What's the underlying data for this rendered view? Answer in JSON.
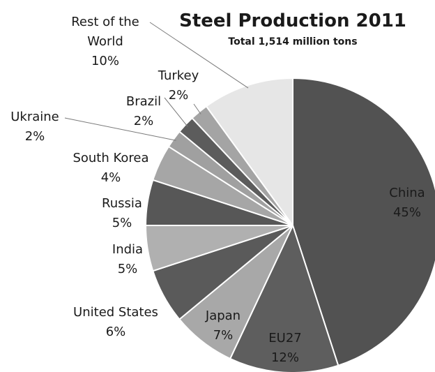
{
  "chart_data": {
    "type": "pie",
    "title": "Steel Production 2011",
    "subtitle": "Total 1,514 million tons",
    "slices": [
      {
        "name": "China",
        "value": 45,
        "label": "45%",
        "color": "#525252"
      },
      {
        "name": "EU27",
        "value": 12,
        "label": "12%",
        "color": "#5e5e5e"
      },
      {
        "name": "Japan",
        "value": 7,
        "label": "7%",
        "color": "#a8a8a8"
      },
      {
        "name": "United States",
        "value": 6,
        "label": "6%",
        "color": "#5a5a5a"
      },
      {
        "name": "India",
        "value": 5,
        "label": "5%",
        "color": "#b0b0b0"
      },
      {
        "name": "Russia",
        "value": 5,
        "label": "5%",
        "color": "#575757"
      },
      {
        "name": "South Korea",
        "value": 4,
        "label": "4%",
        "color": "#a6a6a6"
      },
      {
        "name": "Ukraine",
        "value": 2,
        "label": "2%",
        "color": "#a0a0a0"
      },
      {
        "name": "Brazil",
        "value": 2,
        "label": "2%",
        "color": "#5c5c5c"
      },
      {
        "name": "Turkey",
        "value": 2,
        "label": "2%",
        "color": "#a4a4a4"
      },
      {
        "name": "Rest of the World",
        "value": 10,
        "label": "10%",
        "color": "#e6e6e6"
      }
    ]
  }
}
